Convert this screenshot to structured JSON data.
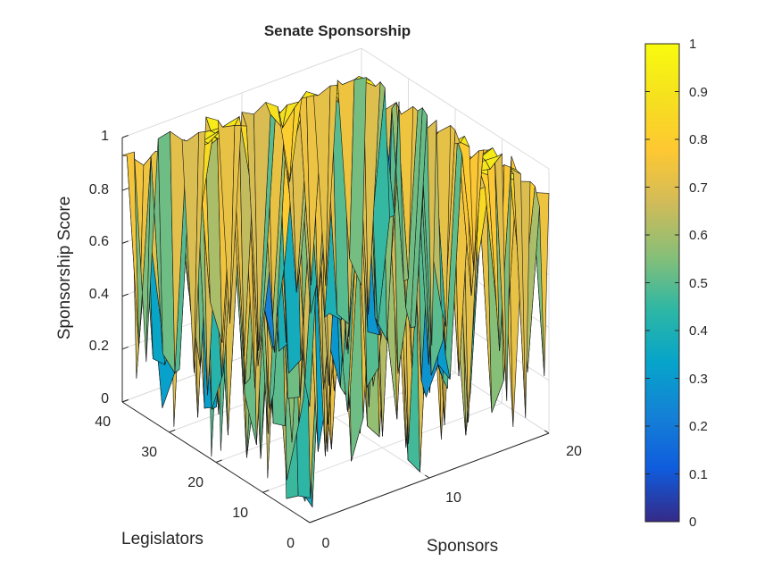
{
  "chart_data": {
    "type": "surface",
    "title": "Senate Sponsorship",
    "xlabel": "Sponsors",
    "ylabel": "Legislators",
    "zlabel": "Sponsorship Score",
    "xlim": [
      0,
      20
    ],
    "ylim": [
      0,
      40
    ],
    "zlim": [
      0,
      1
    ],
    "x_ticks": [
      "0",
      "10",
      "20"
    ],
    "y_ticks": [
      "0",
      "10",
      "20",
      "30",
      "40"
    ],
    "z_ticks": [
      "0",
      "0.2",
      "0.4",
      "0.6",
      "0.8",
      "1"
    ],
    "grid": true,
    "colormap": "parula",
    "colorbar": {
      "position": "right",
      "ticks": [
        "0",
        "0.1",
        "0.2",
        "0.3",
        "0.4",
        "0.5",
        "0.6",
        "0.7",
        "0.8",
        "0.9",
        "1"
      ],
      "colors": [
        "#352a87",
        "#0f5cdd",
        "#1481d6",
        "#06a4ca",
        "#2eb7a4",
        "#87bf77",
        "#d1bb59",
        "#fec832",
        "#f5e11e",
        "#f9fb0e"
      ]
    },
    "surface_blocks": [
      {
        "name": "block-front-left",
        "x_range": [
          0,
          9
        ],
        "y_range": [
          0,
          13
        ],
        "level": 0.97
      },
      {
        "name": "block-front-right",
        "x_range": [
          10,
          20
        ],
        "y_range": [
          0,
          13
        ],
        "level": 0.96
      },
      {
        "name": "block-mid-left",
        "x_range": [
          0,
          9
        ],
        "y_range": [
          14,
          26
        ],
        "level": 0.95
      },
      {
        "name": "block-mid-right",
        "x_range": [
          10,
          20
        ],
        "y_range": [
          14,
          26
        ],
        "level": 0.93
      },
      {
        "name": "block-back-left",
        "x_range": [
          0,
          9
        ],
        "y_range": [
          27,
          40
        ],
        "level": 0.96
      },
      {
        "name": "block-back-right",
        "x_range": [
          10,
          20
        ],
        "y_range": [
          27,
          40
        ],
        "level": 0.94
      }
    ],
    "approx_min_score": 0.0,
    "approx_max_score": 1.0
  }
}
